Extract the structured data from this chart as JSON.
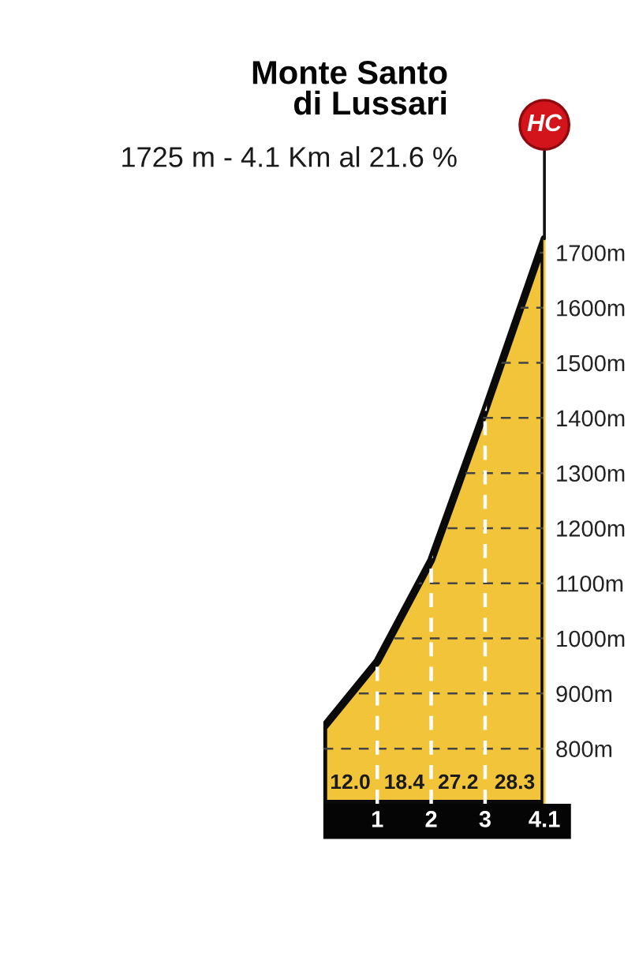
{
  "chart_data": {
    "type": "area",
    "title": "Monte Santo\ndi Lussari",
    "subtitle": "1725 m - 4.1 Km al 21.6 %",
    "x": [
      0,
      1,
      2,
      3,
      4.1
    ],
    "series": [
      {
        "color": "#f2c43a",
        "values": [
          838,
          958,
          1142,
          1414,
          1725
        ]
      }
    ],
    "xlim": [
      0,
      4.1
    ],
    "xticks": [
      1,
      2,
      3,
      4.1
    ],
    "ylim": [
      700,
      1750
    ],
    "yticks": [
      {
        "value": 800,
        "label": "800m"
      },
      {
        "value": 900,
        "label": "900m"
      },
      {
        "value": 1000,
        "label": "1000m"
      },
      {
        "value": 1100,
        "label": "1100m"
      },
      {
        "value": 1200,
        "label": "1200m"
      },
      {
        "value": 1300,
        "label": "1300m"
      },
      {
        "value": 1400,
        "label": "1400m"
      },
      {
        "value": 1500,
        "label": "1500m"
      },
      {
        "value": 1600,
        "label": "1600m"
      },
      {
        "value": 1700,
        "label": "1700m"
      }
    ],
    "grid": true,
    "annotations": [
      "HC",
      "12.0",
      "18.4",
      "27.2",
      "28.3"
    ]
  }
}
